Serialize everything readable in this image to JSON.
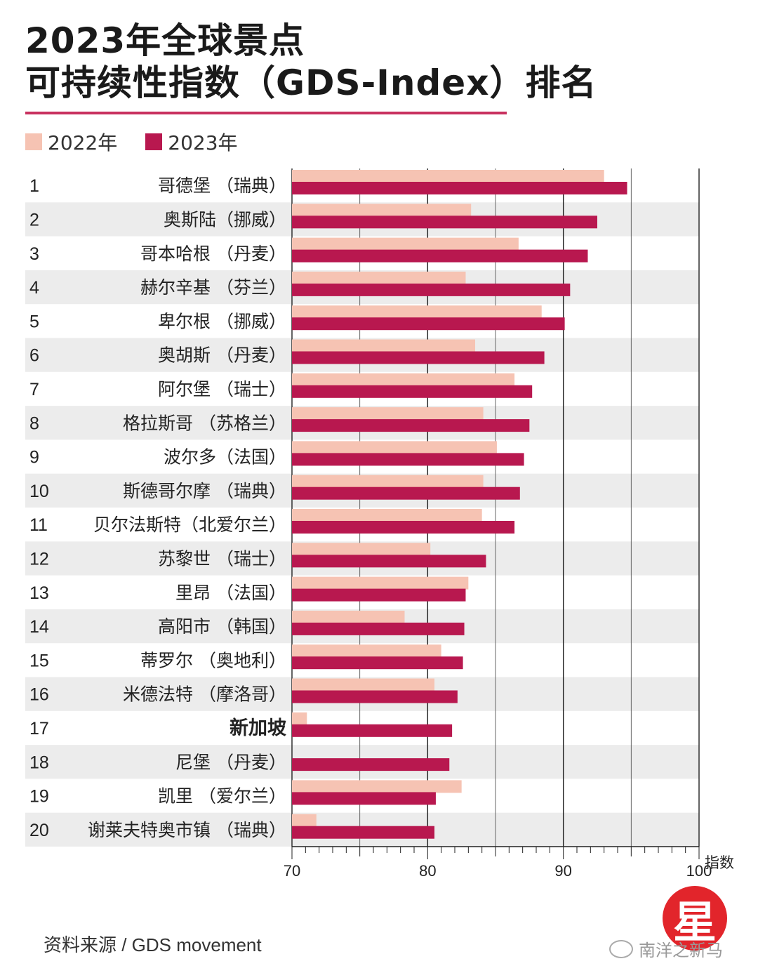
{
  "header": {
    "title_line1": "2023年全球景点",
    "title_line2": "可持续性指数（GDS-Index）排名"
  },
  "colors": {
    "series_2022": "#f6c3b3",
    "series_2023": "#b8184f",
    "title_rule": "#c8315f",
    "row_stripe": "#ececec",
    "logo": "#e2252b"
  },
  "chart_data": {
    "type": "bar",
    "orientation": "horizontal",
    "legend_position": "top-left",
    "grid": true,
    "x_unit_label": "指数",
    "xlim": [
      70,
      100
    ],
    "x_ticks": [
      "70",
      "80",
      "90",
      "100"
    ],
    "ranks": [
      "1",
      "2",
      "3",
      "4",
      "5",
      "6",
      "7",
      "8",
      "9",
      "10",
      "11",
      "12",
      "13",
      "14",
      "15",
      "16",
      "17",
      "18",
      "19",
      "20"
    ],
    "categories": [
      "哥德堡 （瑞典）",
      "奥斯陆（挪威）",
      "哥本哈根 （丹麦）",
      "赫尔辛基 （芬兰）",
      "卑尔根 （挪威）",
      "奥胡斯 （丹麦）",
      "阿尔堡 （瑞士）",
      "格拉斯哥 （苏格兰）",
      "波尔多（法国）",
      "斯德哥尔摩 （瑞典）",
      "贝尔法斯特（北爱尔兰）",
      "苏黎世 （瑞士）",
      "里昂 （法国）",
      "高阳市 （韩国）",
      "蒂罗尔 （奥地利）",
      "米德法特 （摩洛哥）",
      "新加坡",
      "尼堡 （丹麦）",
      "凯里 （爱尔兰）",
      "谢莱夫特奥市镇 （瑞典）"
    ],
    "highlight_index": 16,
    "series": [
      {
        "name": "2022年",
        "values": [
          93.0,
          83.2,
          86.7,
          82.8,
          88.4,
          83.5,
          86.4,
          84.1,
          85.1,
          84.1,
          84.0,
          80.2,
          83.0,
          78.3,
          81.0,
          80.5,
          71.1,
          null,
          82.5,
          71.8
        ]
      },
      {
        "name": "2023年",
        "values": [
          94.7,
          92.5,
          91.8,
          90.5,
          90.1,
          88.6,
          87.7,
          87.5,
          87.1,
          86.8,
          86.4,
          84.3,
          82.8,
          82.7,
          82.6,
          82.2,
          81.8,
          81.6,
          80.6,
          80.5
        ]
      }
    ]
  },
  "footer": {
    "source": "资料来源 / GDS movement",
    "logo_char": "星",
    "watermark": "南洋之新马"
  }
}
